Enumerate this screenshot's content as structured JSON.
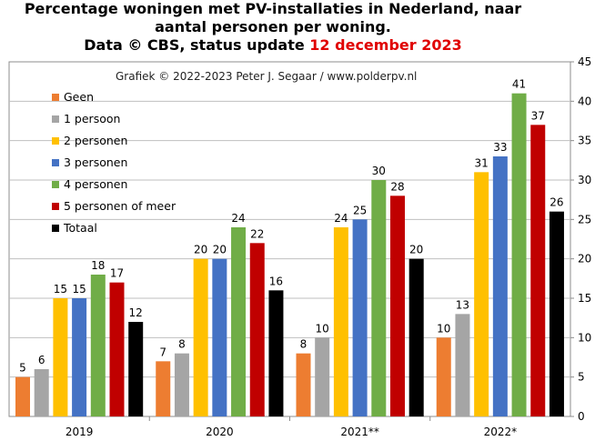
{
  "title_line1": "Percentage woningen met PV-installaties  in Nederland, naar",
  "title_line2": "aantal personen per woning.",
  "title_line3_prefix": "Data © CBS, status update ",
  "title_line3_date": "12 december 2023",
  "colors": {
    "date": "#e00000",
    "background": "#ffffff",
    "grid": "#bfbfbf"
  },
  "chart_data": {
    "type": "bar",
    "annotation": "Grafiek  © 2022-2023  Peter J. Segaar / www.polderpv.nl",
    "categories": [
      "2019",
      "2020",
      "2021**",
      "2022*"
    ],
    "series": [
      {
        "name": "Geen",
        "color": "#ed7d31",
        "values": [
          5,
          7,
          8,
          10
        ]
      },
      {
        "name": "1 persoon",
        "color": "#a5a5a5",
        "values": [
          6,
          8,
          10,
          13
        ]
      },
      {
        "name": "2 personen",
        "color": "#ffc000",
        "values": [
          15,
          20,
          24,
          31
        ]
      },
      {
        "name": "3 personen",
        "color": "#4472c4",
        "values": [
          15,
          20,
          25,
          33
        ]
      },
      {
        "name": "4 personen",
        "color": "#70ad47",
        "values": [
          18,
          24,
          30,
          41
        ]
      },
      {
        "name": "5 personen of meer",
        "color": "#c00000",
        "values": [
          17,
          22,
          28,
          37
        ]
      },
      {
        "name": "Totaal",
        "color": "#000000",
        "values": [
          12,
          16,
          20,
          26
        ]
      }
    ],
    "ylim": [
      0,
      45
    ],
    "yticks": [
      0,
      5,
      10,
      15,
      20,
      25,
      30,
      35,
      40,
      45
    ],
    "y_axis_side": "right",
    "grid": true,
    "legend_position": "top-left"
  }
}
